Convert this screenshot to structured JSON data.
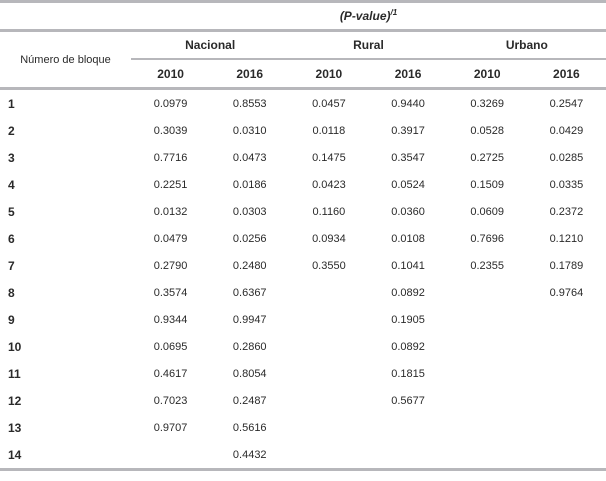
{
  "table": {
    "title": {
      "text": "(P-value)",
      "superscript": "/1"
    },
    "row_header": "Número de bloque",
    "groups": [
      {
        "label": "Nacional",
        "years": [
          "2010",
          "2016"
        ]
      },
      {
        "label": "Rural",
        "years": [
          "2010",
          "2016"
        ]
      },
      {
        "label": "Urbano",
        "years": [
          "2010",
          "2016"
        ]
      }
    ],
    "rows": [
      {
        "block": "1",
        "values": [
          "0.0979",
          "0.8553",
          "0.0457",
          "0.9440",
          "0.3269",
          "0.2547"
        ]
      },
      {
        "block": "2",
        "values": [
          "0.3039",
          "0.0310",
          "0.0118",
          "0.3917",
          "0.0528",
          "0.0429"
        ]
      },
      {
        "block": "3",
        "values": [
          "0.7716",
          "0.0473",
          "0.1475",
          "0.3547",
          "0.2725",
          "0.0285"
        ]
      },
      {
        "block": "4",
        "values": [
          "0.2251",
          "0.0186",
          "0.0423",
          "0.0524",
          "0.1509",
          "0.0335"
        ]
      },
      {
        "block": "5",
        "values": [
          "0.0132",
          "0.0303",
          "0.1160",
          "0.0360",
          "0.0609",
          "0.2372"
        ]
      },
      {
        "block": "6",
        "values": [
          "0.0479",
          "0.0256",
          "0.0934",
          "0.0108",
          "0.7696",
          "0.1210"
        ]
      },
      {
        "block": "7",
        "values": [
          "0.2790",
          "0.2480",
          "0.3550",
          "0.1041",
          "0.2355",
          "0.1789"
        ]
      },
      {
        "block": "8",
        "values": [
          "0.3574",
          "0.6367",
          "",
          "0.0892",
          "",
          "0.9764"
        ]
      },
      {
        "block": "9",
        "values": [
          "0.9344",
          "0.9947",
          "",
          "0.1905",
          "",
          ""
        ]
      },
      {
        "block": "10",
        "values": [
          "0.0695",
          "0.2860",
          "",
          "0.0892",
          "",
          ""
        ]
      },
      {
        "block": "11",
        "values": [
          "0.4617",
          "0.8054",
          "",
          "0.1815",
          "",
          ""
        ]
      },
      {
        "block": "12",
        "values": [
          "0.7023",
          "0.2487",
          "",
          "0.5677",
          "",
          ""
        ]
      },
      {
        "block": "13",
        "values": [
          "0.9707",
          "0.5616",
          "",
          "",
          "",
          ""
        ]
      },
      {
        "block": "14",
        "values": [
          "",
          "0.4432",
          "",
          "",
          "",
          ""
        ]
      }
    ],
    "colors": {
      "border": "#b7b7bb",
      "text": "#2a2a2a"
    }
  }
}
